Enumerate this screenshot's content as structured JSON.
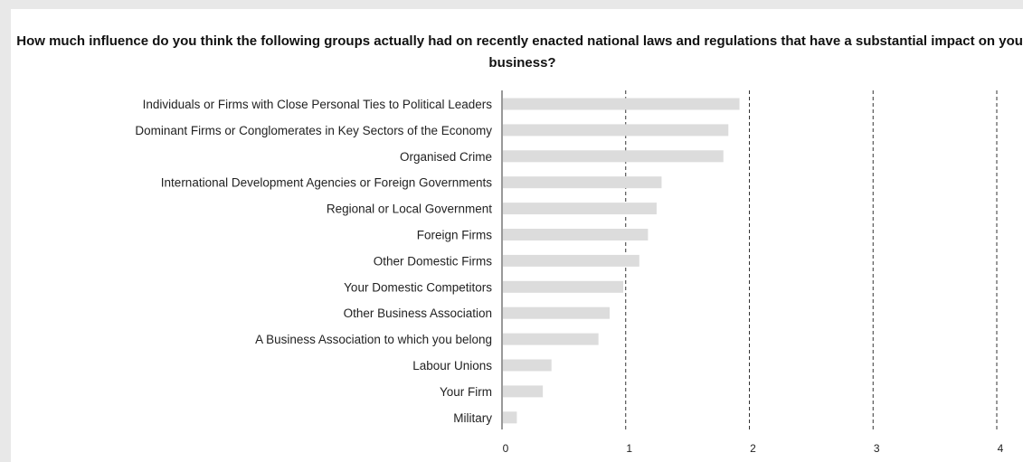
{
  "chart_data": {
    "type": "bar",
    "orientation": "horizontal",
    "title": "How much influence do you think the following groups actually had on recently enacted national laws and regulations that have a substantial impact on your business?",
    "categories": [
      "Individuals or Firms with Close Personal Ties to Political Leaders",
      "Dominant Firms or Conglomerates in Key Sectors of the Economy",
      "Organised Crime",
      "International Development Agencies or Foreign Governments",
      "Regional or Local Government",
      "Foreign Firms",
      "Other Domestic Firms",
      "Your Domestic Competitors",
      "Other Business Association",
      "A Business Association to which you belong",
      "Labour Unions",
      "Your Firm",
      "Military"
    ],
    "values": [
      1.92,
      1.83,
      1.79,
      1.29,
      1.25,
      1.18,
      1.11,
      0.98,
      0.87,
      0.78,
      0.4,
      0.33,
      0.12
    ],
    "xlim": [
      0,
      4
    ],
    "x_ticks": [
      "0",
      "1",
      "2",
      "3",
      "4"
    ],
    "grid": "vertical dashed",
    "bar_color": "#dcdcdc"
  }
}
